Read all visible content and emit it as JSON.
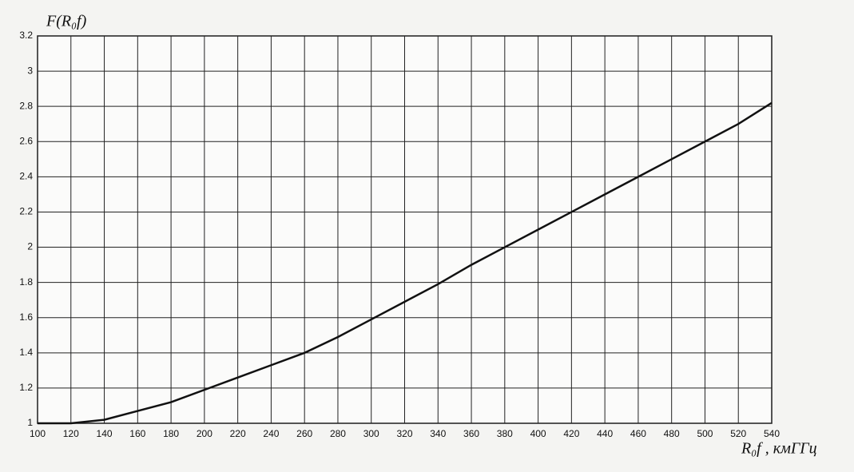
{
  "chart_data": {
    "type": "line",
    "y_label": "F(R₀f)",
    "x_label": "R₀f , кмГГц",
    "x": [
      100,
      120,
      140,
      160,
      180,
      200,
      220,
      240,
      260,
      280,
      300,
      320,
      340,
      360,
      380,
      400,
      420,
      440,
      460,
      480,
      500,
      520,
      540
    ],
    "series": [
      {
        "name": "F(R₀f)",
        "color": "#111111",
        "values": [
          1.0,
          1.0,
          1.02,
          1.07,
          1.12,
          1.19,
          1.26,
          1.33,
          1.4,
          1.49,
          1.59,
          1.69,
          1.79,
          1.9,
          2.0,
          2.1,
          2.2,
          2.3,
          2.4,
          2.5,
          2.6,
          2.7,
          2.82
        ]
      }
    ],
    "xlim": [
      100,
      540
    ],
    "xticks": [
      100,
      120,
      140,
      160,
      180,
      200,
      220,
      240,
      260,
      280,
      300,
      320,
      340,
      360,
      380,
      400,
      420,
      440,
      460,
      480,
      500,
      520,
      540
    ],
    "ylim": [
      1,
      3.2
    ],
    "yticks": [
      1,
      1.2,
      1.4,
      1.6,
      1.8,
      2,
      2.2,
      2.4,
      2.6,
      2.8,
      3,
      3.2
    ],
    "grid": true
  }
}
